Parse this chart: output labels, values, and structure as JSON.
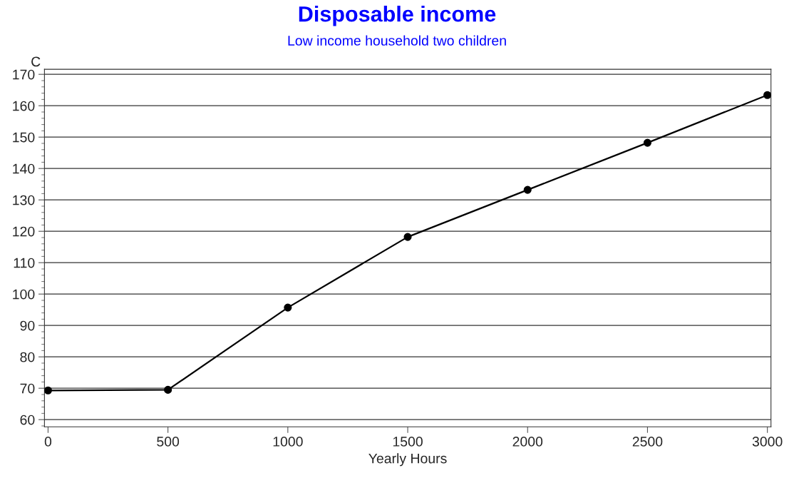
{
  "chart_data": {
    "type": "line",
    "title": "Disposable income",
    "subtitle": "Low income household two children",
    "xlabel": "Yearly Hours",
    "ylabel": "C",
    "x": [
      0,
      500,
      1000,
      1500,
      2000,
      2500,
      3000
    ],
    "series": [
      {
        "color": "#000000",
        "values": [
          69.3,
          69.5,
          95.7,
          118.2,
          133.2,
          148.2,
          163.4
        ]
      }
    ],
    "xlim": [
      -15,
      3015
    ],
    "xticks": [
      0,
      500,
      1000,
      1500,
      2000,
      2500,
      3000
    ],
    "ylim": [
      57.7,
      171.6
    ],
    "yticks": [
      60,
      70,
      80,
      90,
      100,
      110,
      120,
      130,
      140,
      150,
      160,
      170
    ],
    "grid": "y",
    "marker": "circle",
    "line_style": "solid"
  }
}
